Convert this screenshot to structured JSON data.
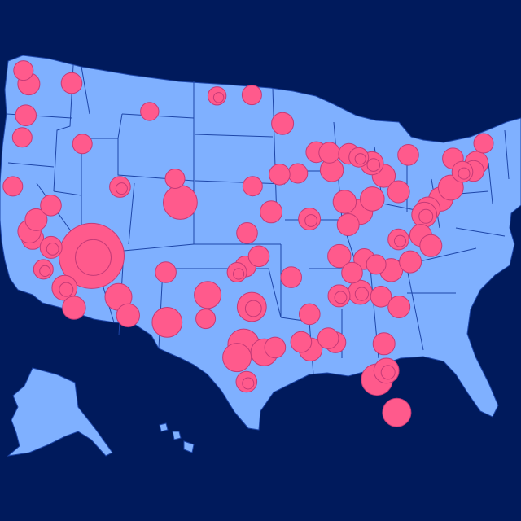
{
  "colors": {
    "background": "#001a5c",
    "land": "#7fb0ff",
    "border": "#1e46a8",
    "bubble_fill": "#ff5a8c",
    "bubble_stroke": "#c53a77"
  },
  "map": {
    "projection": "albers-usa",
    "regions": [
      "contiguous-us",
      "alaska",
      "hawaii"
    ],
    "state_borders": true
  },
  "bubbles": [
    {
      "lon": -115.14,
      "lat": 36.17,
      "value": 100
    },
    {
      "lon": -104.99,
      "lat": 39.74,
      "value": 22
    },
    {
      "lon": -106.49,
      "lat": 31.76,
      "value": 16
    },
    {
      "lon": -101.85,
      "lat": 33.58,
      "value": 12
    },
    {
      "lon": -97.74,
      "lat": 30.27,
      "value": 18
    },
    {
      "lon": -96.8,
      "lat": 32.78,
      "value": 15
    },
    {
      "lon": -95.37,
      "lat": 29.76,
      "value": 12
    },
    {
      "lon": -98.49,
      "lat": 29.42,
      "value": 14
    },
    {
      "lon": -82.46,
      "lat": 27.95,
      "value": 18
    },
    {
      "lon": -80.19,
      "lat": 25.76,
      "value": 14
    },
    {
      "lon": -81.38,
      "lat": 28.54,
      "value": 10
    },
    {
      "lon": -75.16,
      "lat": 39.95,
      "value": 9
    },
    {
      "lon": -74.0,
      "lat": 40.71,
      "value": 10
    },
    {
      "lon": -71.06,
      "lat": 42.36,
      "value": 8
    },
    {
      "lon": -76.61,
      "lat": 39.29,
      "value": 9
    },
    {
      "lon": -77.04,
      "lat": 38.91,
      "value": 10
    },
    {
      "lon": -84.39,
      "lat": 39.1,
      "value": 10
    },
    {
      "lon": -86.16,
      "lat": 39.77,
      "value": 8
    },
    {
      "lon": -83.0,
      "lat": 39.96,
      "value": 9
    },
    {
      "lon": -81.69,
      "lat": 41.5,
      "value": 8
    },
    {
      "lon": -84.39,
      "lat": 33.75,
      "value": 9
    },
    {
      "lon": -80.84,
      "lat": 35.23,
      "value": 8
    },
    {
      "lon": -78.64,
      "lat": 35.78,
      "value": 7
    },
    {
      "lon": -112.07,
      "lat": 33.45,
      "value": 12
    },
    {
      "lon": -110.97,
      "lat": 32.22,
      "value": 8
    },
    {
      "lon": -118.24,
      "lat": 34.05,
      "value": 10
    },
    {
      "lon": -117.16,
      "lat": 32.72,
      "value": 8
    },
    {
      "lon": -121.89,
      "lat": 37.34,
      "value": 7
    },
    {
      "lon": -122.27,
      "lat": 37.8,
      "value": 8
    },
    {
      "lon": -121.49,
      "lat": 38.58,
      "value": 7
    },
    {
      "lon": -119.79,
      "lat": 36.74,
      "value": 7
    },
    {
      "lon": -122.33,
      "lat": 47.61,
      "value": 7
    },
    {
      "lon": -122.68,
      "lat": 45.52,
      "value": 6
    },
    {
      "lon": -93.27,
      "lat": 44.98,
      "value": 7
    },
    {
      "lon": -87.63,
      "lat": 41.88,
      "value": 8
    },
    {
      "lon": -90.2,
      "lat": 38.63,
      "value": 7
    },
    {
      "lon": -94.58,
      "lat": 39.1,
      "value": 7
    },
    {
      "lon": -90.07,
      "lat": 29.95,
      "value": 8
    },
    {
      "lon": -86.78,
      "lat": 36.16,
      "value": 8
    },
    {
      "lon": -85.76,
      "lat": 38.25,
      "value": 7
    },
    {
      "lon": -83.05,
      "lat": 42.33,
      "value": 8
    },
    {
      "lon": -79.99,
      "lat": 40.44,
      "value": 7
    },
    {
      "lon": -73.76,
      "lat": 42.65,
      "value": 6
    },
    {
      "lon": -78.88,
      "lat": 42.89,
      "value": 6
    },
    {
      "lon": -106.65,
      "lat": 35.08,
      "value": 6
    },
    {
      "lon": -111.89,
      "lat": 40.76,
      "value": 6
    },
    {
      "lon": -116.2,
      "lat": 43.62,
      "value": 5
    },
    {
      "lon": -97.52,
      "lat": 35.47,
      "value": 6
    },
    {
      "lon": -95.99,
      "lat": 36.15,
      "value": 6
    },
    {
      "lon": -96.79,
      "lat": 46.88,
      "value": 5
    },
    {
      "lon": -100.78,
      "lat": 46.81,
      "value": 4
    },
    {
      "lon": -108.5,
      "lat": 45.78,
      "value": 4
    },
    {
      "lon": -105.59,
      "lat": 41.31,
      "value": 5
    },
    {
      "lon": -92.29,
      "lat": 34.75,
      "value": 6
    },
    {
      "lon": -90.18,
      "lat": 32.3,
      "value": 6
    },
    {
      "lon": -86.8,
      "lat": 33.52,
      "value": 7
    },
    {
      "lon": -82.0,
      "lat": 33.47,
      "value": 6
    },
    {
      "lon": -79.93,
      "lat": 32.78,
      "value": 7
    },
    {
      "lon": -81.66,
      "lat": 30.33,
      "value": 7
    },
    {
      "lon": -87.22,
      "lat": 30.42,
      "value": 6
    },
    {
      "lon": -97.4,
      "lat": 27.8,
      "value": 6
    },
    {
      "lon": -94.13,
      "lat": 30.08,
      "value": 6
    },
    {
      "lon": -91.15,
      "lat": 30.45,
      "value": 6
    },
    {
      "lon": -88.04,
      "lat": 30.69,
      "value": 6
    },
    {
      "lon": -71.41,
      "lat": 41.82,
      "value": 6
    },
    {
      "lon": -72.68,
      "lat": 41.76,
      "value": 6
    },
    {
      "lon": -70.26,
      "lat": 43.66,
      "value": 5
    },
    {
      "lon": -89.4,
      "lat": 43.07,
      "value": 6
    },
    {
      "lon": -87.91,
      "lat": 43.04,
      "value": 6
    },
    {
      "lon": -85.67,
      "lat": 42.96,
      "value": 6
    },
    {
      "lon": -84.55,
      "lat": 42.73,
      "value": 5
    },
    {
      "lon": -91.53,
      "lat": 41.66,
      "value": 5
    },
    {
      "lon": -93.62,
      "lat": 41.59,
      "value": 6
    },
    {
      "lon": -96.7,
      "lat": 40.81,
      "value": 5
    },
    {
      "lon": -97.34,
      "lat": 37.69,
      "value": 6
    },
    {
      "lon": -98.49,
      "lat": 35.08,
      "value": 5
    },
    {
      "lon": -102.08,
      "lat": 31.99,
      "value": 5
    },
    {
      "lon": -117.43,
      "lat": 47.66,
      "value": 6
    },
    {
      "lon": -119.81,
      "lat": 39.53,
      "value": 6
    },
    {
      "lon": -124.16,
      "lat": 40.8,
      "value": 5
    },
    {
      "lon": -120.66,
      "lat": 35.28,
      "value": 5
    },
    {
      "lon": -123.09,
      "lat": 44.05,
      "value": 5
    },
    {
      "lon": -122.95,
      "lat": 48.5,
      "value": 5
    },
    {
      "lon": -77.44,
      "lat": 37.54,
      "value": 7
    },
    {
      "lon": -76.29,
      "lat": 36.85,
      "value": 7
    },
    {
      "lon": -80.0,
      "lat": 37.27,
      "value": 6
    },
    {
      "lon": -83.92,
      "lat": 35.96,
      "value": 6
    },
    {
      "lon": -85.31,
      "lat": 35.05,
      "value": 6
    },
    {
      "lon": -82.55,
      "lat": 35.6,
      "value": 5
    }
  ]
}
